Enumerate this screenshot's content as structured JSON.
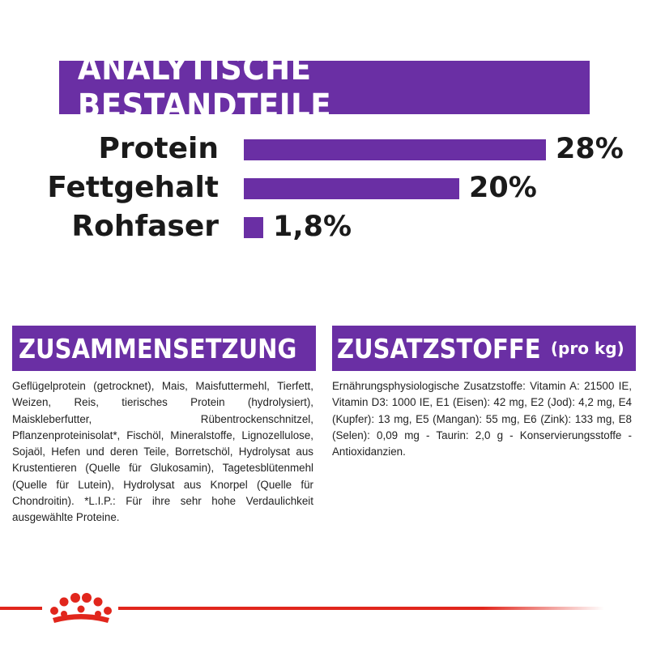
{
  "analysis": {
    "title": "ANALYTISCHE BESTANDTEILE",
    "items": [
      {
        "label": "Protein",
        "value_text": "28%",
        "value": 28
      },
      {
        "label": "Fettgehalt",
        "value_text": "20%",
        "value": 20
      },
      {
        "label": "Rohfaser",
        "value_text": "1,8%",
        "value": 1.8
      }
    ]
  },
  "composition": {
    "title": "ZUSAMMENSETZUNG",
    "text": "Geflügelprotein (getrocknet), Mais, Maisfuttermehl, Tierfett, Weizen, Reis, tierisches Protein (hydrolysiert), Maiskleberfutter, Rübentrockenschnitzel, Pflanzenproteinisolat*, Fischöl, Mineralstoffe, Lignozellulose, Sojaöl, Hefen und deren Teile, Borretschöl, Hydrolysat aus Krustentieren (Quelle für Glukosamin), Tagetesblütenmehl (Quelle für Lutein), Hydrolysat aus Knorpel (Quelle für Chondroitin). *L.I.P.: Für ihre sehr hohe Verdaulichkeit ausgewählte Proteine."
  },
  "additives": {
    "title": "ZUSATZSTOFFE",
    "subtitle": "(pro kg)",
    "text": "Ernährungsphysiologische Zusatzstoffe: Vitamin A: 21500 IE, Vitamin D3: 1000 IE, E1 (Eisen): 42 mg, E2 (Jod): 4,2 mg, E4 (Kupfer): 13 mg, E5 (Mangan): 55 mg, E6 (Zink): 133 mg, E8 (Selen): 0,09 mg - Taurin: 2,0 g - Konservierungsstoffe - Antioxidanzien."
  },
  "footer": {
    "logo_icon": "royal-canin-crown-icon"
  },
  "colors": {
    "accent": "#6a2fa4",
    "brand_red": "#e1261c"
  }
}
